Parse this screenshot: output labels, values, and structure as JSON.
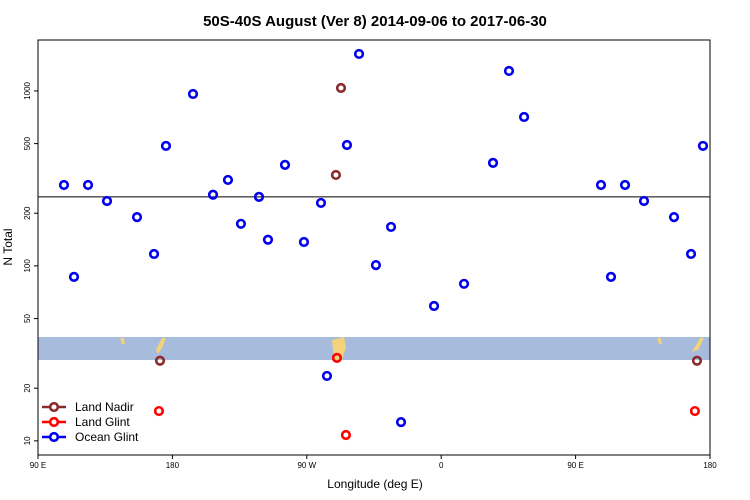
{
  "chart_data": {
    "type": "scatter",
    "title": "50S-40S August (Ver 8)   2014-09-06 to 2017-06-30",
    "x_label": "Longitude (deg E)",
    "y_label": "N Total",
    "log_y": true,
    "xlim": [
      90,
      540
    ],
    "xticks": [
      {
        "value": 90,
        "label": "90 E"
      },
      180,
      {
        "value": 270,
        "label": "90 W"
      },
      {
        "value": 360,
        "label": "0"
      },
      {
        "value": 450,
        "label": "90 E"
      },
      {
        "value": 540,
        "label": "180"
      }
    ],
    "ylim": [
      8.3,
      1955
    ],
    "yticks": [
      10,
      20,
      50,
      100,
      200,
      500,
      1000
    ],
    "reference_line": 248,
    "legend": "bottom-left",
    "series": [
      {
        "name": "Land Nadir",
        "color": "#8b2a2a",
        "x": [
          171.7,
          292.9,
          289.5,
          531.3
        ],
        "values": [
          28.7,
          1040,
          331,
          28.7
        ]
      },
      {
        "name": "Land Glint",
        "color": "#ff0000",
        "x": [
          171.0,
          290.2,
          296.2,
          529.9
        ],
        "values": [
          14.8,
          29.8,
          10.8,
          14.8
        ]
      },
      {
        "name": "Ocean Glint",
        "color": "#0000ee",
        "x": [
          107.4,
          114.1,
          123.5,
          136.2,
          156.3,
          167.7,
          175.7,
          193.8,
          207.2,
          217.2,
          225.9,
          238.0,
          244.0,
          255.4,
          268.1,
          279.5,
          283.5,
          296.9,
          305.0,
          316.3,
          326.4,
          333.1,
          355.2,
          375.3,
          394.7,
          405.4,
          415.5,
          467.0,
          473.7,
          483.1,
          495.8,
          515.9,
          527.3,
          535.3
        ],
        "values": [
          290,
          86.5,
          290,
          235,
          190,
          117,
          485,
          961,
          255,
          310,
          174,
          248,
          141,
          378,
          137,
          229,
          23.5,
          491,
          1627,
          101,
          167,
          12.8,
          59,
          79,
          388,
          1301,
          710,
          290,
          86.5,
          290,
          235,
          190,
          117,
          485
        ]
      }
    ]
  }
}
